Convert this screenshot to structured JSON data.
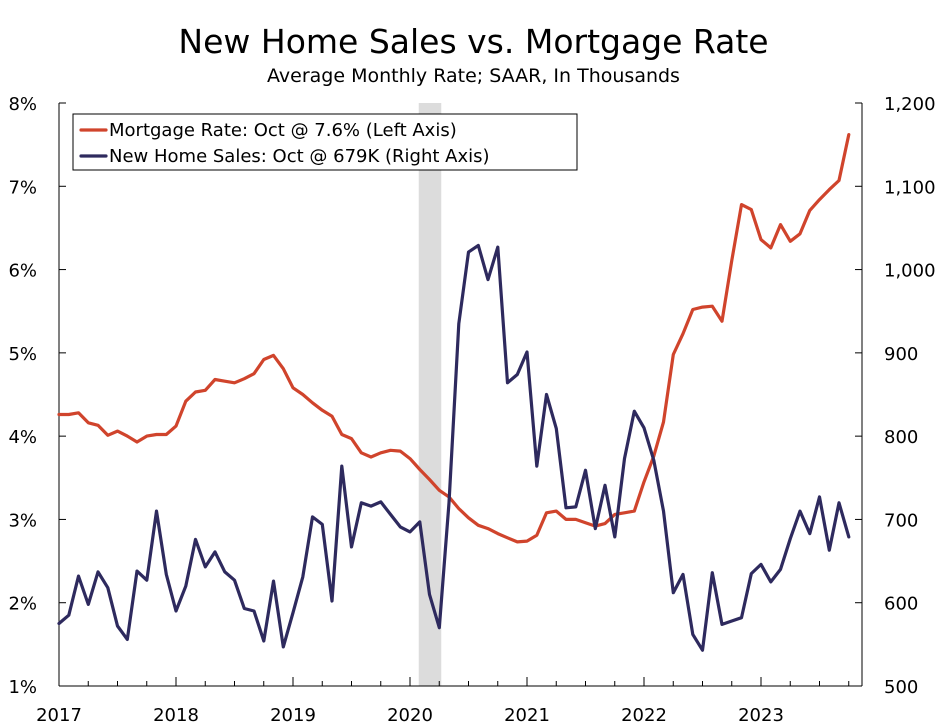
{
  "chart_data": {
    "type": "line",
    "title": "New Home Sales vs. Mortgage Rate",
    "subtitle": "Average Monthly Rate; SAAR, In Thousands",
    "x_start": "2017-01",
    "x_end": "2023-10",
    "x_tick_labels": [
      "2017",
      "2018",
      "2019",
      "2020",
      "2021",
      "2022",
      "2023"
    ],
    "recession_shading": [
      "2020-02",
      "2020-04"
    ],
    "left_axis": {
      "ylim": [
        1,
        8
      ],
      "ticks": [
        1,
        2,
        3,
        4,
        5,
        6,
        7,
        8
      ],
      "tick_labels": [
        "1%",
        "2%",
        "3%",
        "4%",
        "5%",
        "6%",
        "7%",
        "8%"
      ]
    },
    "right_axis": {
      "ylim": [
        500,
        1200
      ],
      "ticks": [
        500,
        600,
        700,
        800,
        900,
        1000,
        1100,
        1200
      ],
      "tick_labels": [
        "500",
        "600",
        "700",
        "800",
        "900",
        "1,000",
        "1,100",
        "1,200"
      ]
    },
    "legend_position": "top-left",
    "grid": false,
    "series": [
      {
        "name": "Mortgage Rate: Oct @ 7.6% (Left Axis)",
        "axis": "left",
        "color": "#d0442c",
        "values": [
          4.26,
          4.26,
          4.28,
          4.16,
          4.13,
          4.01,
          4.06,
          4.0,
          3.93,
          4.0,
          4.02,
          4.02,
          4.12,
          4.42,
          4.53,
          4.55,
          4.68,
          4.66,
          4.64,
          4.69,
          4.75,
          4.92,
          4.97,
          4.81,
          4.58,
          4.5,
          4.4,
          4.31,
          4.24,
          4.02,
          3.97,
          3.8,
          3.75,
          3.8,
          3.83,
          3.82,
          3.73,
          3.6,
          3.48,
          3.35,
          3.27,
          3.13,
          3.02,
          2.93,
          2.89,
          2.83,
          2.78,
          2.73,
          2.74,
          2.81,
          3.08,
          3.1,
          3.0,
          3.0,
          2.96,
          2.92,
          2.95,
          3.06,
          3.08,
          3.1,
          3.45,
          3.76,
          4.17,
          4.98,
          5.23,
          5.52,
          5.55,
          5.56,
          5.38,
          6.11,
          6.78,
          6.72,
          6.36,
          6.26,
          6.54,
          6.34,
          6.43,
          6.71,
          6.84,
          6.96,
          7.07,
          7.62
        ]
      },
      {
        "name": "New Home Sales: Oct @ 679K (Right Axis)",
        "axis": "right",
        "color": "#2e2a5e",
        "values": [
          575,
          585,
          632,
          598,
          637,
          618,
          572,
          556,
          638,
          627,
          710,
          634,
          590,
          620,
          676,
          643,
          661,
          637,
          627,
          593,
          590,
          554,
          626,
          547,
          588,
          631,
          703,
          694,
          602,
          764,
          667,
          720,
          716,
          721,
          706,
          691,
          685,
          697,
          610,
          570,
          720,
          935,
          1021,
          1029,
          988,
          1027,
          864,
          874,
          901,
          764,
          850,
          809,
          714,
          715,
          759,
          689,
          741,
          679,
          773,
          830,
          810,
          771,
          710,
          612,
          634,
          562,
          543,
          636,
          574,
          578,
          582,
          635,
          646,
          625,
          640,
          677,
          710,
          683,
          727,
          663,
          720,
          679
        ]
      }
    ]
  }
}
